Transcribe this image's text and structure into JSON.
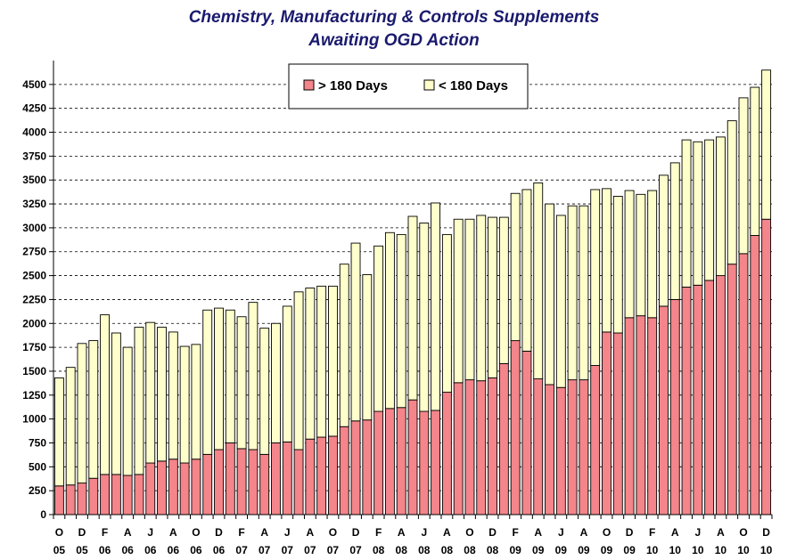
{
  "chart_data": {
    "type": "bar",
    "stacked": true,
    "title": "Chemistry, Manufacturing & Controls Supplements",
    "subtitle": "Awaiting OGD Action",
    "xlabel": "",
    "ylabel": "",
    "ylim": [
      0,
      4750
    ],
    "yticks": [
      0,
      250,
      500,
      750,
      1000,
      1250,
      1500,
      1750,
      2000,
      2250,
      2500,
      2750,
      3000,
      3250,
      3500,
      3750,
      4000,
      4250,
      4500
    ],
    "grid": "horizontal dashed",
    "legend_position": "top-center",
    "colors": {
      "series1": "#f4858a",
      "series2": "#ffffcc",
      "outline": "#000000",
      "grid": "#000000"
    },
    "categories": [
      [
        "O",
        "05"
      ],
      [
        "N",
        "05"
      ],
      [
        "D",
        "05"
      ],
      [
        "J",
        "06"
      ],
      [
        "F",
        "06"
      ],
      [
        "M",
        "06"
      ],
      [
        "A",
        "06"
      ],
      [
        "M",
        "06"
      ],
      [
        "J",
        "06"
      ],
      [
        "J",
        "06"
      ],
      [
        "A",
        "06"
      ],
      [
        "S",
        "06"
      ],
      [
        "O",
        "06"
      ],
      [
        "N",
        "06"
      ],
      [
        "D",
        "06"
      ],
      [
        "J",
        "07"
      ],
      [
        "F",
        "07"
      ],
      [
        "M",
        "07"
      ],
      [
        "A",
        "07"
      ],
      [
        "M",
        "07"
      ],
      [
        "J",
        "07"
      ],
      [
        "J",
        "07"
      ],
      [
        "A",
        "07"
      ],
      [
        "S",
        "07"
      ],
      [
        "O",
        "07"
      ],
      [
        "N",
        "07"
      ],
      [
        "D",
        "07"
      ],
      [
        "J",
        "08"
      ],
      [
        "F",
        "08"
      ],
      [
        "M",
        "08"
      ],
      [
        "A",
        "08"
      ],
      [
        "M",
        "08"
      ],
      [
        "J",
        "08"
      ],
      [
        "J",
        "08"
      ],
      [
        "A",
        "08"
      ],
      [
        "S",
        "08"
      ],
      [
        "O",
        "08"
      ],
      [
        "N",
        "08"
      ],
      [
        "D",
        "08"
      ],
      [
        "J",
        "09"
      ],
      [
        "F",
        "09"
      ],
      [
        "M",
        "09"
      ],
      [
        "A",
        "09"
      ],
      [
        "M",
        "09"
      ],
      [
        "J",
        "09"
      ],
      [
        "J",
        "09"
      ],
      [
        "A",
        "09"
      ],
      [
        "S",
        "09"
      ],
      [
        "O",
        "09"
      ],
      [
        "N",
        "09"
      ],
      [
        "D",
        "09"
      ],
      [
        "J",
        "10"
      ],
      [
        "F",
        "10"
      ],
      [
        "M",
        "10"
      ],
      [
        "A",
        "10"
      ],
      [
        "M",
        "10"
      ],
      [
        "J",
        "10"
      ],
      [
        "J",
        "10"
      ],
      [
        "A",
        "10"
      ],
      [
        "S",
        "10"
      ],
      [
        "O",
        "10"
      ],
      [
        "N",
        "10"
      ],
      [
        "D",
        "10"
      ]
    ],
    "labeled_tick_every": 2,
    "series": [
      {
        "name": "> 180 Days",
        "values": [
          300,
          310,
          330,
          380,
          420,
          420,
          410,
          420,
          540,
          560,
          580,
          540,
          580,
          630,
          680,
          750,
          690,
          680,
          630,
          750,
          760,
          680,
          790,
          810,
          820,
          920,
          980,
          990,
          1080,
          1110,
          1120,
          1200,
          1080,
          1090,
          1280,
          1380,
          1410,
          1400,
          1430,
          1580,
          1820,
          1710,
          1420,
          1360,
          1330,
          1410,
          1410,
          1560,
          1910,
          1900,
          2060,
          2080,
          2060,
          2180,
          2250,
          2380,
          2400,
          2450,
          2500,
          2620,
          2730,
          2920,
          3090
        ]
      },
      {
        "name": "< 180 Days",
        "values": [
          1130,
          1230,
          1460,
          1440,
          1670,
          1480,
          1340,
          1540,
          1470,
          1400,
          1330,
          1220,
          1200,
          1510,
          1480,
          1390,
          1380,
          1540,
          1320,
          1250,
          1420,
          1650,
          1580,
          1580,
          1570,
          1700,
          1860,
          1520,
          1730,
          1840,
          1810,
          1920,
          1970,
          2170,
          1650,
          1710,
          1680,
          1730,
          1680,
          1530,
          1540,
          1690,
          2050,
          1890,
          1800,
          1820,
          1820,
          1840,
          1500,
          1430,
          1330,
          1270,
          1330,
          1370,
          1430,
          1540,
          1500,
          1470,
          1450,
          1500,
          1630,
          1550,
          1560
        ]
      }
    ]
  }
}
